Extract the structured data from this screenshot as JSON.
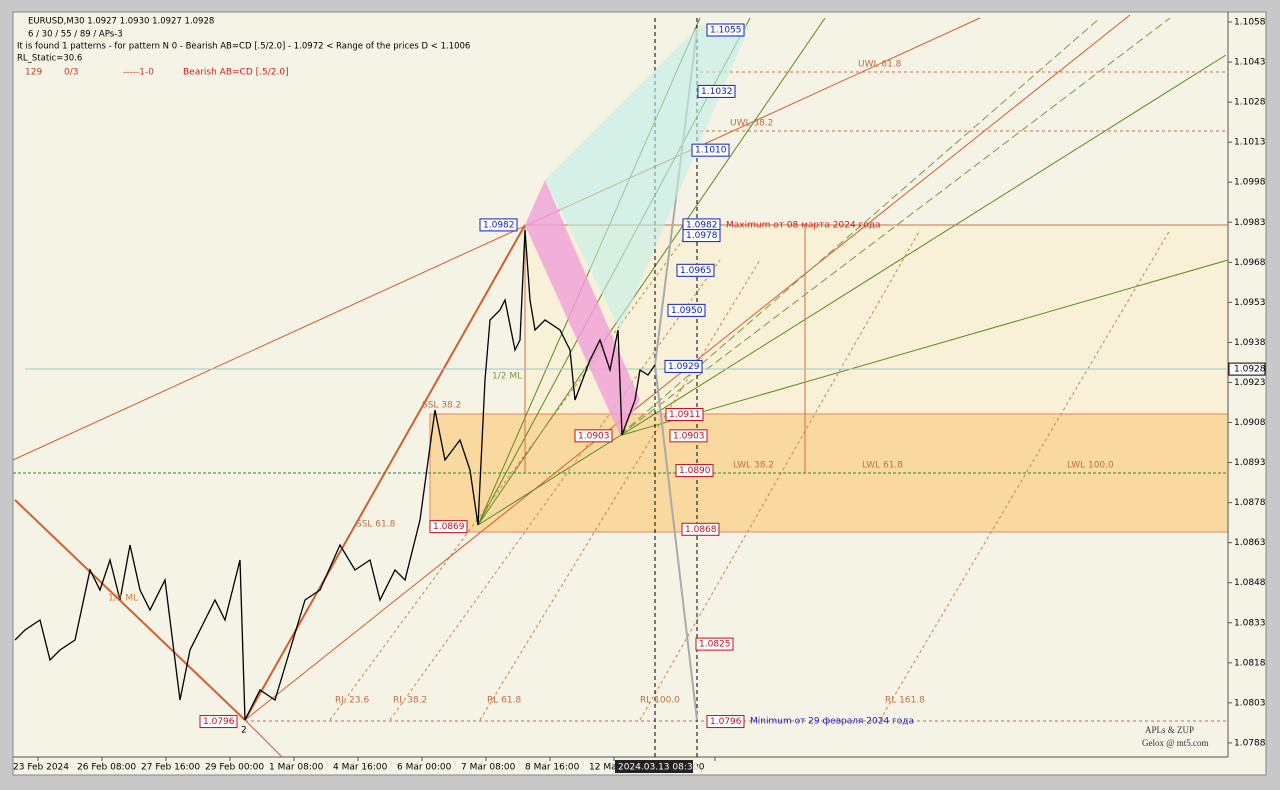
{
  "header": {
    "symbol": "EURUSD,M30  1.0927 1.0930 1.0927 1.0928",
    "periods": "6 / 30 / 55 / 89 / APs-3",
    "pattern_info": "It is found 1 patterns  -  for pattern N 0 - Bearish AB=CD [.5/2.0] - 1.0972 < Range of the prices D < 1.1006",
    "rl_static": "RL_Static=30.6",
    "status": [
      "129",
      "0/3",
      "-----1-0",
      "Bearish AB=CD [.5/2.0]"
    ]
  },
  "price_axis": {
    "ticks": [
      "1.1058",
      "1.1043",
      "1.1028",
      "1.1013",
      "1.0998",
      "1.0983",
      "1.0968",
      "1.0953",
      "1.0938",
      "1.0923",
      "1.0908",
      "1.0893",
      "1.0878",
      "1.0863",
      "1.0848",
      "1.0833",
      "1.0818",
      "1.0803",
      "1.0788"
    ],
    "current": "1.0928"
  },
  "time_axis": {
    "ticks": [
      "23 Feb 2024",
      "26 Feb 08:00",
      "27 Feb 16:00",
      "29 Feb 00:00",
      "1 Mar 08:00",
      "4 Mar 16:00",
      "6 Mar 00:00",
      "7 Mar 08:00",
      "8 Mar 16:00",
      "12 Ma",
      ":00"
    ],
    "cursor": "2024.03.13 08:36"
  },
  "levels": {
    "blue": [
      "1.1055",
      "1.1032",
      "1.1010",
      "1.0982",
      "1.0978",
      "1.0965",
      "1.0950",
      "1.0929"
    ],
    "red": [
      "1.0911",
      "1.0903",
      "1.0890",
      "1.0868",
      "1.0825",
      "1.0796"
    ],
    "points": [
      "1.0982",
      "1.0903",
      "1.0869",
      "1.0796"
    ]
  },
  "annotations": {
    "maximum": "Maximum от 08 марта 2024 года",
    "minimum": "Minimum от 29 февраля 2024 года",
    "brand": "APLs & ZUP",
    "site": "Gelox @ mt5.com",
    "uwl618": "UWL 61.8",
    "uwl382": "UWL 38.2",
    "lwl382": "LWL 38.2",
    "lwl618": "LWL 61.8",
    "lwl100": "LWL 100.0",
    "ml_right": "1/2 ML",
    "ml_left": "1/2 ML",
    "point2": "2",
    "rl236": "RL 23.6",
    "rl382": "RL 38.2",
    "rl618": "RL 61.8",
    "rl100": "RL 100.0",
    "rl1618": "RL 161.8",
    "ssl382": "SSL 38.2",
    "ssl618": "SSL 61.8"
  }
}
